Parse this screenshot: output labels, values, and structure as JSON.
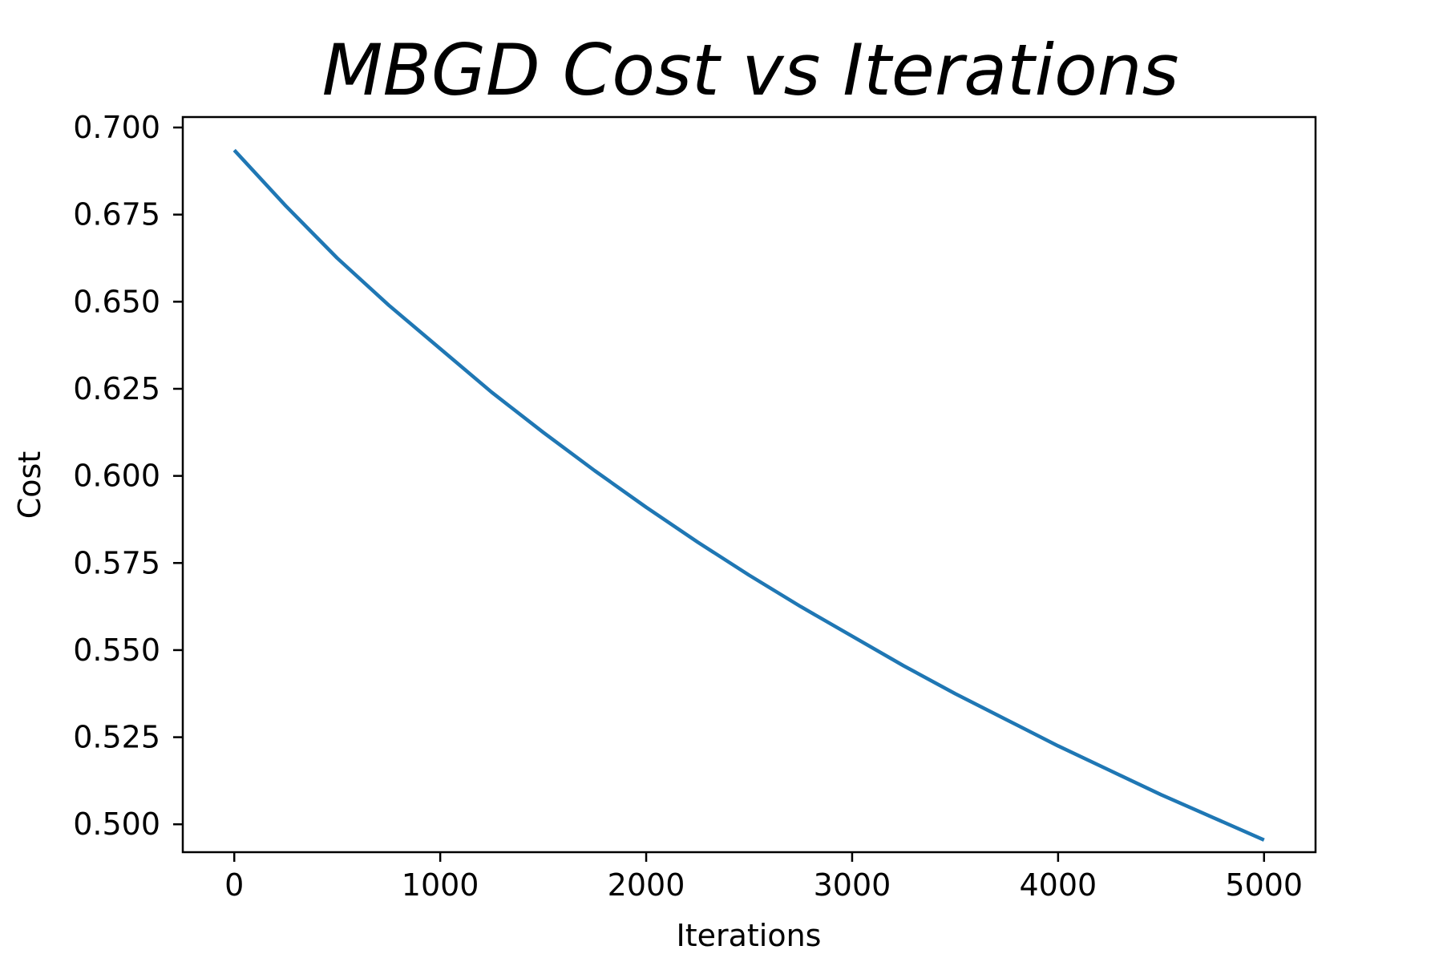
{
  "chart_data": {
    "type": "line",
    "title": "MBGD Cost vs Iterations",
    "xlabel": "Iterations",
    "ylabel": "Cost",
    "xlim": [
      -250,
      5250
    ],
    "ylim": [
      0.492,
      0.703
    ],
    "xticks": [
      0,
      1000,
      2000,
      3000,
      4000,
      5000
    ],
    "xtick_labels": [
      "0",
      "1000",
      "2000",
      "3000",
      "4000",
      "5000"
    ],
    "yticks": [
      0.5,
      0.525,
      0.55,
      0.575,
      0.6,
      0.625,
      0.65,
      0.675,
      0.7
    ],
    "ytick_labels": [
      "0.500",
      "0.525",
      "0.550",
      "0.575",
      "0.600",
      "0.625",
      "0.650",
      "0.675",
      "0.700"
    ],
    "grid": false,
    "legend": "none",
    "series": [
      {
        "color": "#1f77b4",
        "x": [
          0,
          250,
          500,
          750,
          1000,
          1250,
          1500,
          1750,
          2000,
          2250,
          2500,
          2750,
          3000,
          3250,
          3500,
          3750,
          4000,
          4250,
          4500,
          4750,
          5000
        ],
        "y": [
          0.6935,
          0.6775,
          0.6625,
          0.649,
          0.6365,
          0.624,
          0.6125,
          0.6015,
          0.591,
          0.581,
          0.5715,
          0.5625,
          0.554,
          0.5455,
          0.5375,
          0.53,
          0.5225,
          0.5155,
          0.5085,
          0.502,
          0.4955
        ]
      }
    ]
  }
}
